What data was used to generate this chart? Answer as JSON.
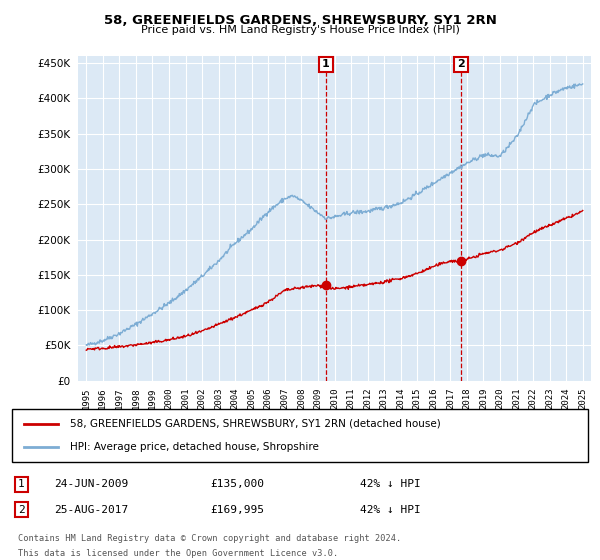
{
  "title": "58, GREENFIELDS GARDENS, SHREWSBURY, SY1 2RN",
  "subtitle": "Price paid vs. HM Land Registry's House Price Index (HPI)",
  "legend_label_red": "58, GREENFIELDS GARDENS, SHREWSBURY, SY1 2RN (detached house)",
  "legend_label_blue": "HPI: Average price, detached house, Shropshire",
  "sale1_date": "24-JUN-2009",
  "sale1_price": "£135,000",
  "sale1_hpi": "42% ↓ HPI",
  "sale2_date": "25-AUG-2017",
  "sale2_price": "£169,995",
  "sale2_hpi": "42% ↓ HPI",
  "footnote1": "Contains HM Land Registry data © Crown copyright and database right 2024.",
  "footnote2": "This data is licensed under the Open Government Licence v3.0.",
  "red_color": "#cc0000",
  "blue_color": "#7dadd4",
  "marker1_x": 2009.48,
  "marker1_y": 135000,
  "marker2_x": 2017.65,
  "marker2_y": 169995,
  "ylim": [
    0,
    460000
  ],
  "xlim": [
    1994.5,
    2025.5
  ],
  "yticks": [
    0,
    50000,
    100000,
    150000,
    200000,
    250000,
    300000,
    350000,
    400000,
    450000
  ],
  "xticks": [
    1995,
    1996,
    1997,
    1998,
    1999,
    2000,
    2001,
    2002,
    2003,
    2004,
    2005,
    2006,
    2007,
    2008,
    2009,
    2010,
    2011,
    2012,
    2013,
    2014,
    2015,
    2016,
    2017,
    2018,
    2019,
    2020,
    2021,
    2022,
    2023,
    2024,
    2025
  ]
}
